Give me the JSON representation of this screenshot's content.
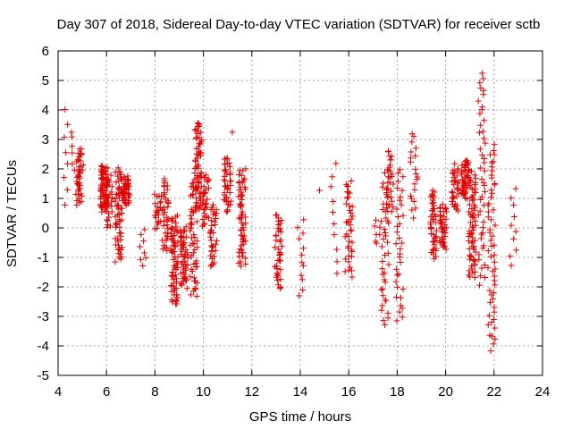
{
  "chart_data": {
    "type": "scatter",
    "title": "Day 307 of 2018, Sidereal Day-to-day VTEC variation (SDTVAR) for receiver sctb",
    "xlabel": "GPS time / hours",
    "ylabel": "SDTVAR / TECUs",
    "xlim": [
      4,
      24
    ],
    "ylim": [
      -5,
      6
    ],
    "xticks": [
      "4",
      "6",
      "8",
      "10",
      "12",
      "14",
      "16",
      "18",
      "20",
      "22",
      "24"
    ],
    "yticks": [
      "-5",
      "-4",
      "-3",
      "-2",
      "-1",
      "0",
      "1",
      "2",
      "3",
      "4",
      "5",
      "6"
    ],
    "grid": true,
    "marker": "plus",
    "color": "#e00000",
    "clusters": [
      {
        "x": 4.3,
        "ymin": 0.8,
        "ymax": 4.0,
        "n": 8
      },
      {
        "x": 4.7,
        "ymin": 1.2,
        "ymax": 3.3,
        "n": 10
      },
      {
        "x": 4.9,
        "ymin": 0.8,
        "ymax": 2.7,
        "n": 40
      },
      {
        "x": 5.9,
        "ymin": 0.6,
        "ymax": 2.1,
        "n": 70
      },
      {
        "x": 6.1,
        "ymin": 0.0,
        "ymax": 1.8,
        "n": 25
      },
      {
        "x": 6.5,
        "ymin": -1.1,
        "ymax": 2.0,
        "n": 60
      },
      {
        "x": 6.8,
        "ymin": 0.8,
        "ymax": 1.7,
        "n": 45
      },
      {
        "x": 7.5,
        "ymin": -1.3,
        "ymax": -0.1,
        "n": 8
      },
      {
        "x": 8.1,
        "ymin": 0.0,
        "ymax": 1.1,
        "n": 20
      },
      {
        "x": 8.4,
        "ymin": -0.8,
        "ymax": 1.7,
        "n": 40
      },
      {
        "x": 8.8,
        "ymin": -2.6,
        "ymax": 0.4,
        "n": 70
      },
      {
        "x": 9.2,
        "ymin": -2.0,
        "ymax": 0.0,
        "n": 50
      },
      {
        "x": 9.6,
        "ymin": -2.3,
        "ymax": 1.8,
        "n": 55
      },
      {
        "x": 9.8,
        "ymin": 0.6,
        "ymax": 3.6,
        "n": 60
      },
      {
        "x": 10.1,
        "ymin": 0.0,
        "ymax": 1.8,
        "n": 30
      },
      {
        "x": 10.4,
        "ymin": -1.3,
        "ymax": 0.8,
        "n": 35
      },
      {
        "x": 11.0,
        "ymin": 0.6,
        "ymax": 2.4,
        "n": 45
      },
      {
        "x": 11.2,
        "ymin": 3.3,
        "ymax": 3.3,
        "n": 1
      },
      {
        "x": 11.6,
        "ymin": -1.3,
        "ymax": 2.0,
        "n": 60
      },
      {
        "x": 13.1,
        "ymin": -2.1,
        "ymax": 0.5,
        "n": 40
      },
      {
        "x": 14.0,
        "ymin": -2.3,
        "ymax": 0.3,
        "n": 12
      },
      {
        "x": 14.8,
        "ymin": 1.3,
        "ymax": 1.3,
        "n": 1
      },
      {
        "x": 15.4,
        "ymin": -1.5,
        "ymax": 2.2,
        "n": 10
      },
      {
        "x": 16.0,
        "ymin": -1.6,
        "ymax": 1.6,
        "n": 40
      },
      {
        "x": 17.2,
        "ymin": -0.5,
        "ymax": 0.3,
        "n": 8
      },
      {
        "x": 17.5,
        "ymin": -3.3,
        "ymax": 1.8,
        "n": 40
      },
      {
        "x": 17.7,
        "ymin": 0.5,
        "ymax": 2.6,
        "n": 30
      },
      {
        "x": 18.1,
        "ymin": -3.2,
        "ymax": 2.0,
        "n": 35
      },
      {
        "x": 18.7,
        "ymin": 0.4,
        "ymax": 3.2,
        "n": 20
      },
      {
        "x": 19.5,
        "ymin": -1.0,
        "ymax": 1.3,
        "n": 45
      },
      {
        "x": 19.9,
        "ymin": -0.7,
        "ymax": 0.8,
        "n": 40
      },
      {
        "x": 20.4,
        "ymin": 0.6,
        "ymax": 2.1,
        "n": 35
      },
      {
        "x": 20.8,
        "ymin": 1.0,
        "ymax": 2.3,
        "n": 45
      },
      {
        "x": 21.1,
        "ymin": -1.7,
        "ymax": 1.9,
        "n": 70
      },
      {
        "x": 21.5,
        "ymin": -1.9,
        "ymax": 5.3,
        "n": 45
      },
      {
        "x": 21.9,
        "ymin": -4.1,
        "ymax": 2.8,
        "n": 55
      },
      {
        "x": 22.8,
        "ymin": -1.3,
        "ymax": 1.3,
        "n": 10
      }
    ]
  }
}
